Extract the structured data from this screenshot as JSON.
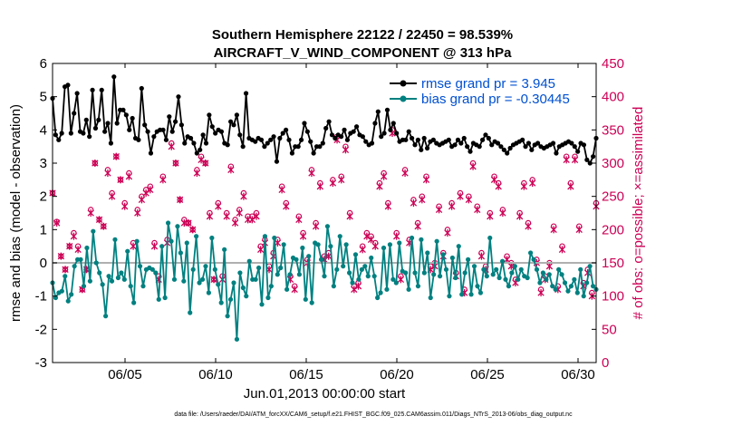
{
  "chart_data": {
    "type": "line",
    "title": "Southern Hemisphere 22122 / 22450 = 98.539%",
    "subtitle": "AIRCRAFT_V_WIND_COMPONENT @ 313 hPa",
    "xlabel": "Jun.01,2013 00:00:00 start",
    "ylabel": "rmse and bias (model - observation)",
    "y2label": "# of obs: o=possible; ×=assimilated",
    "ylim": [
      -3,
      6
    ],
    "y2lim": [
      0,
      450
    ],
    "xlim": [
      1.0,
      31.0
    ],
    "yticks": [
      "-3",
      "-2",
      "-1",
      "0",
      "1",
      "2",
      "3",
      "4",
      "5",
      "6"
    ],
    "y2ticks": [
      "0",
      "50",
      "100",
      "150",
      "200",
      "250",
      "300",
      "350",
      "400",
      "450"
    ],
    "xticks": [
      {
        "x": 5,
        "label": "06/05"
      },
      {
        "x": 10,
        "label": "06/10"
      },
      {
        "x": 15,
        "label": "06/15"
      },
      {
        "x": 20,
        "label": "06/20"
      },
      {
        "x": 25,
        "label": "06/25"
      },
      {
        "x": 30,
        "label": "06/30"
      }
    ],
    "grid": false,
    "legend_position": "top-right",
    "colors": {
      "rmse": "#000000",
      "bias": "#008080",
      "obs": "#cc0055",
      "zero": "#b0b0b0",
      "legend_text": "#0050d0"
    },
    "series": [
      {
        "name": "rmse grand pr = 3.945",
        "values": [
          4.95,
          3.85,
          3.7,
          3.9,
          5.3,
          5.35,
          3.9,
          4.5,
          5.1,
          3.95,
          3.9,
          4.3,
          3.8,
          5.2,
          4.05,
          4.3,
          5.2,
          3.95,
          4.2,
          3.6,
          5.6,
          4.2,
          4.6,
          4.6,
          4.45,
          4.0,
          4.35,
          3.75,
          3.7,
          5.25,
          4.15,
          3.95,
          3.3,
          3.8,
          3.95,
          4.0,
          4.0,
          3.7,
          4.4,
          3.95,
          4.25,
          5.0,
          4.15,
          3.6,
          3.8,
          3.75,
          3.6,
          3.3,
          3.4,
          3.85,
          3.6,
          4.45,
          4.1,
          3.9,
          4.0,
          3.95,
          3.6,
          3.55,
          4.25,
          4.15,
          4.45,
          3.85,
          3.5,
          5.1,
          3.75,
          3.7,
          3.65,
          3.75,
          3.7,
          3.5,
          3.6,
          3.7,
          3.8,
          3.05,
          3.75,
          3.9,
          4.0,
          3.7,
          3.3,
          3.5,
          3.5,
          3.7,
          4.2,
          3.95,
          3.65,
          3.3,
          3.5,
          3.5,
          3.6,
          4.05,
          4.25,
          3.85,
          3.75,
          3.85,
          3.8,
          4.0,
          3.7,
          3.9,
          3.95,
          4.1,
          3.85,
          3.8,
          3.65,
          3.55,
          3.6,
          4.2,
          4.55,
          3.8,
          3.9,
          4.6,
          4.0,
          4.2,
          3.9,
          3.65,
          3.7,
          3.7,
          3.95,
          3.75,
          3.55,
          3.7,
          3.4,
          3.75,
          3.45,
          3.65,
          3.7,
          3.6,
          3.55,
          3.6,
          3.65,
          3.7,
          3.5,
          3.55,
          3.7,
          3.6,
          3.75,
          3.5,
          3.35,
          3.6,
          3.55,
          3.5,
          3.7,
          3.85,
          3.75,
          3.55,
          3.65,
          3.6,
          3.5,
          3.4,
          3.3,
          3.45,
          3.55,
          3.6,
          3.65,
          3.7,
          3.5,
          3.6,
          3.4,
          3.55,
          3.6,
          3.5,
          3.45,
          3.5,
          3.55,
          3.6,
          3.3,
          3.5,
          3.55,
          3.6,
          3.65,
          3.6,
          3.5,
          3.35,
          3.6,
          3.55,
          3.1,
          3.0,
          3.2,
          3.75
        ]
      },
      {
        "name": "bias grand pr = -0.30445",
        "values": [
          -0.6,
          -1.05,
          -0.9,
          -0.85,
          -0.4,
          -1.15,
          -0.95,
          -0.1,
          0.1,
          0.1,
          -0.7,
          0.45,
          -0.55,
          0.95,
          0.0,
          -0.3,
          -0.65,
          -1.6,
          -0.4,
          -0.55,
          0.7,
          -0.45,
          -0.3,
          -0.5,
          0.35,
          -0.7,
          -1.2,
          0.65,
          -0.1,
          -0.7,
          -0.2,
          -0.15,
          -0.2,
          -0.3,
          -1.1,
          0.5,
          -1.05,
          1.2,
          0.65,
          -0.5,
          1.1,
          0.3,
          -0.55,
          0.6,
          -1.5,
          -0.2,
          0.8,
          -0.6,
          -0.5,
          -0.1,
          -0.9,
          0.75,
          -0.2,
          -0.65,
          -1.2,
          0.4,
          -1.6,
          -1.1,
          -0.6,
          -2.3,
          -0.3,
          -0.75,
          -1.0,
          0.05,
          -0.5,
          -0.5,
          -0.15,
          -1.25,
          0.8,
          -1.05,
          -0.7,
          0.75,
          -0.35,
          -0.15,
          0.55,
          -0.8,
          -0.35,
          0.15,
          0.1,
          -0.35,
          0.45,
          -1.1,
          0.2,
          -1.2,
          0.6,
          0.55,
          0.1,
          -0.4,
          1.1,
          0.5,
          -0.7,
          -0.2,
          0.8,
          -0.1,
          0.55,
          -0.3,
          -0.6,
          0.25,
          -0.5,
          -0.2,
          -0.1,
          -0.4,
          0.15,
          -0.4,
          -1.05,
          -0.9,
          0.45,
          -0.8,
          0.55,
          -0.5,
          -0.6,
          0.6,
          -0.25,
          -0.3,
          -0.8,
          0.75,
          -0.3,
          -0.7,
          0.7,
          -0.3,
          0.3,
          -1.05,
          -0.35,
          0.65,
          -0.4,
          0.25,
          -0.2,
          -1.0,
          0.15,
          -0.45,
          0.5,
          -0.95,
          -0.3,
          0.1,
          -0.95,
          -0.1,
          -0.7,
          -0.9,
          -0.2,
          -0.4,
          0.75,
          -0.35,
          -0.2,
          -0.45,
          0.05,
          -0.5,
          -0.7,
          -0.3,
          -0.1,
          -0.5,
          -0.2,
          -0.4,
          -0.45,
          0.3,
          0.1,
          -0.2,
          -0.6,
          -0.3,
          -0.5,
          -0.35,
          -0.7,
          -0.8,
          -0.2,
          -0.35,
          -0.6,
          -0.85,
          -0.7,
          -0.5,
          -0.9,
          -0.2,
          -1.0,
          -0.6,
          -0.1,
          -0.7,
          -0.8
        ]
      }
    ],
    "obs_possible": [
      255,
      212,
      160,
      140,
      175,
      195,
      175,
      110,
      140,
      230,
      300,
      215,
      205,
      290,
      255,
      310,
      275,
      240,
      285,
      180,
      230,
      250,
      260,
      265,
      180,
      130,
      280,
      185,
      330,
      300,
      245,
      215,
      210,
      200,
      290,
      310,
      300,
      225,
      125,
      240,
      130,
      225,
      295,
      215,
      230,
      255,
      220,
      220,
      225,
      175,
      185,
      145,
      165,
      185,
      265,
      240,
      130,
      115,
      220,
      195,
      155,
      290,
      210,
      270,
      160,
      165,
      275,
      340,
      280,
      325,
      225,
      115,
      120,
      175,
      195,
      190,
      180,
      270,
      285,
      240,
      350,
      195,
      130,
      290,
      185,
      245,
      210,
      250,
      280,
      145,
      150,
      235,
      165,
      200,
      240,
      135,
      255,
      110,
      250,
      300,
      235,
      165,
      145,
      225,
      280,
      270,
      230,
      160,
      150,
      125,
      225,
      270,
      210,
      275,
      155,
      110,
      130,
      150,
      205,
      115,
      175,
      310,
      270,
      310,
      205,
      120,
      140,
      105,
      240
    ],
    "obs_assimilated": [
      255,
      210,
      160,
      140,
      175,
      190,
      170,
      110,
      140,
      225,
      300,
      215,
      205,
      285,
      250,
      310,
      275,
      235,
      280,
      175,
      225,
      245,
      255,
      260,
      175,
      125,
      275,
      180,
      325,
      300,
      245,
      210,
      210,
      200,
      285,
      305,
      300,
      220,
      125,
      235,
      125,
      220,
      290,
      210,
      225,
      250,
      215,
      215,
      220,
      170,
      180,
      140,
      160,
      180,
      260,
      235,
      125,
      110,
      215,
      190,
      150,
      285,
      205,
      265,
      155,
      160,
      270,
      335,
      275,
      320,
      220,
      110,
      115,
      170,
      190,
      185,
      175,
      265,
      280,
      235,
      345,
      190,
      125,
      285,
      180,
      240,
      205,
      245,
      275,
      140,
      145,
      230,
      160,
      195,
      235,
      130,
      250,
      105,
      245,
      295,
      230,
      160,
      140,
      220,
      275,
      265,
      225,
      155,
      145,
      120,
      220,
      265,
      205,
      270,
      150,
      105,
      125,
      145,
      200,
      110,
      170,
      305,
      265,
      305,
      200,
      115,
      135,
      100,
      235
    ],
    "legend": [
      "rmse grand pr = 3.945",
      "bias grand pr = -0.30445"
    ],
    "footnote": "data file: /Users/raeder/DAI/ATM_forcXX/CAM6_setup/f.e21.FHIST_BGC.f09_025.CAM6assim.011/Diags_NTrS_2013-06/obs_diag_output.nc"
  }
}
